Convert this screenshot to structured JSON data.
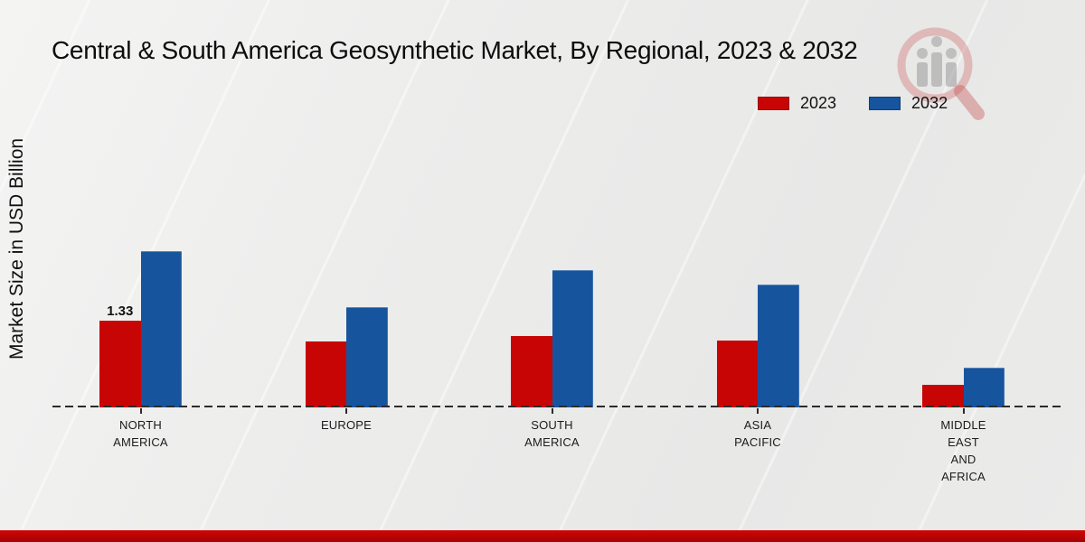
{
  "title": "Central & South America Geosynthetic Market, By Regional, 2023 & 2032",
  "ylabel": "Market Size in USD Billion",
  "legend": {
    "items": [
      {
        "label": "2023",
        "color": "#c80505"
      },
      {
        "label": "2032",
        "color": "#17549e"
      }
    ]
  },
  "watermark_icon": "magnifier-bar-chart-logo",
  "colors": {
    "bar_2023": "#c80505",
    "bar_2032": "#17549e",
    "footer_banner": "#b50303",
    "baseline": "#2b2b2b"
  },
  "chart_data": {
    "type": "bar",
    "title": "Central & South America Geosynthetic Market, By Regional, 2023 & 2032",
    "xlabel": "",
    "ylabel": "Market Size in USD Billion",
    "categories": [
      "NORTH AMERICA",
      "EUROPE",
      "SOUTH AMERICA",
      "ASIA PACIFIC",
      "MIDDLE EAST AND AFRICA"
    ],
    "category_lines": [
      [
        "NORTH",
        "AMERICA"
      ],
      [
        "EUROPE"
      ],
      [
        "SOUTH",
        "AMERICA"
      ],
      [
        "ASIA",
        "PACIFIC"
      ],
      [
        "MIDDLE",
        "EAST",
        "AND",
        "AFRICA"
      ]
    ],
    "series": [
      {
        "name": "2023",
        "color": "#c80505",
        "values": [
          1.33,
          1.01,
          1.09,
          1.03,
          0.35
        ]
      },
      {
        "name": "2032",
        "color": "#17549e",
        "values": [
          2.4,
          1.54,
          2.11,
          1.88,
          0.61
        ]
      }
    ],
    "value_labels": [
      {
        "series_index": 0,
        "category_index": 0,
        "text": "1.33"
      }
    ],
    "ylim": [
      0,
      2.6
    ],
    "grid": false,
    "legend_position": "top-right",
    "baseline_style": "dashed",
    "y_axis_ticks_visible": false
  }
}
